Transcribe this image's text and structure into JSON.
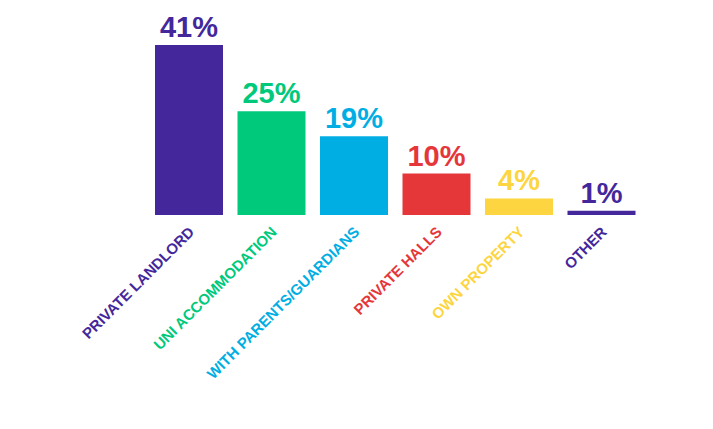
{
  "chart_data": {
    "type": "bar",
    "categories": [
      "PRIVATE LANDLORD",
      "UNI ACCOMMODATION",
      "WITH PARENTS/GUARDIANS",
      "PRIVATE HALLS",
      "OWN PROPERTY",
      "OTHER"
    ],
    "values": [
      41,
      25,
      19,
      10,
      4,
      1
    ],
    "value_labels": [
      "41%",
      "25%",
      "19%",
      "10%",
      "4%",
      "1%"
    ],
    "colors": [
      "#43279b",
      "#00c97b",
      "#00aee3",
      "#e5373a",
      "#fcd540",
      "#43279b"
    ],
    "ylim": [
      0,
      41
    ],
    "data_labels": true,
    "tick_labels": "x",
    "grid": false
  }
}
